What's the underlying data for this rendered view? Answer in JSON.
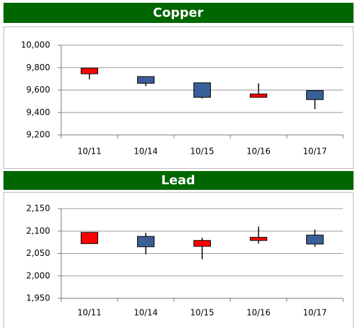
{
  "chart_data": [
    {
      "type": "candlestick",
      "title": "Copper",
      "categories": [
        "10/11",
        "10/14",
        "10/15",
        "10/16",
        "10/17"
      ],
      "open": [
        9745,
        9720,
        9665,
        9535,
        9595
      ],
      "high": [
        9795,
        9720,
        9665,
        9660,
        9595
      ],
      "low": [
        9695,
        9635,
        9525,
        9530,
        9430
      ],
      "close": [
        9795,
        9660,
        9535,
        9565,
        9515
      ],
      "up_color": "#ff0000",
      "down_color": "#3a5f98",
      "ylim": [
        9200,
        10000
      ],
      "yticks": [
        {
          "value": 9200,
          "label": "9,200"
        },
        {
          "value": 9400,
          "label": "9,400"
        },
        {
          "value": 9600,
          "label": "9,600"
        },
        {
          "value": 9800,
          "label": "9,800"
        },
        {
          "value": 10000,
          "label": "10,000"
        }
      ],
      "grid": true
    },
    {
      "type": "candlestick",
      "title": "Lead",
      "categories": [
        "10/11",
        "10/14",
        "10/15",
        "10/16",
        "10/17"
      ],
      "open": [
        2072,
        2088,
        2066,
        2079,
        2091
      ],
      "high": [
        2097,
        2096,
        2085,
        2110,
        2103
      ],
      "low": [
        2072,
        2048,
        2037,
        2072,
        2065
      ],
      "close": [
        2097,
        2065,
        2079,
        2086,
        2071
      ],
      "up_color": "#ff0000",
      "down_color": "#3a5f98",
      "ylim": [
        1950,
        2150
      ],
      "yticks": [
        {
          "value": 1950,
          "label": "1,950"
        },
        {
          "value": 2000,
          "label": "2,000"
        },
        {
          "value": 2050,
          "label": "2,050"
        },
        {
          "value": 2100,
          "label": "2,100"
        },
        {
          "value": 2150,
          "label": "2,150"
        }
      ],
      "grid": true
    }
  ]
}
